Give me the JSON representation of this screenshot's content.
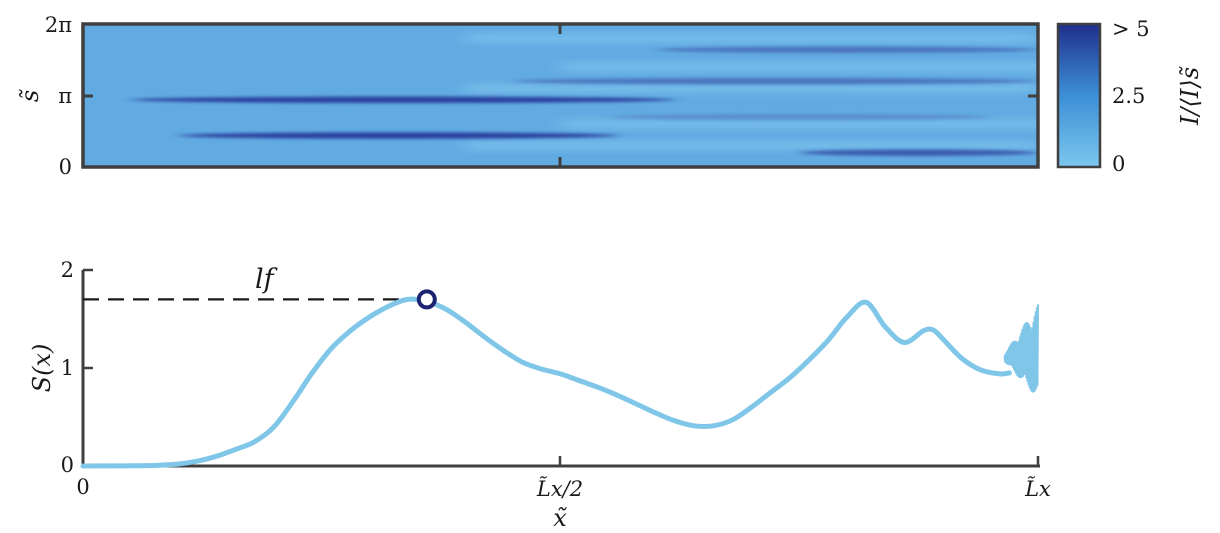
{
  "chart_data": [
    {
      "type": "heatmap",
      "xlabel": "",
      "ylabel": "s̃",
      "y_ticks": [
        "0",
        "π",
        "2π"
      ],
      "colorbar": {
        "label": "I/⟨I⟩s̃",
        "ticks": [
          "0",
          "2.5",
          "> 5"
        ],
        "range": [
          0,
          5
        ],
        "colors": [
          "#7cc6ee",
          "#2a3f9e"
        ]
      },
      "bands": [
        {
          "s": 0.47,
          "x_start": 0.05,
          "x_end": 0.62,
          "peak_intensity": 5
        },
        {
          "s": 0.22,
          "x_start": 0.1,
          "x_end": 0.56,
          "peak_intensity": 5
        },
        {
          "s": 0.6,
          "x_start": 0.45,
          "x_end": 1.0,
          "peak_intensity": 3
        },
        {
          "s": 0.82,
          "x_start": 0.6,
          "x_end": 1.0,
          "peak_intensity": 3
        },
        {
          "s": 0.1,
          "x_start": 0.75,
          "x_end": 1.0,
          "peak_intensity": 4
        },
        {
          "s": 0.35,
          "x_start": 0.55,
          "x_end": 0.95,
          "peak_intensity": 2
        }
      ]
    },
    {
      "type": "line",
      "xlabel": "x̃",
      "ylabel": "S(x)",
      "x_ticks": [
        "0",
        "L̃x/2",
        "L̃x"
      ],
      "y_ticks": [
        "0",
        "1",
        "2"
      ],
      "xlim": [
        0,
        1
      ],
      "ylim": [
        0,
        2
      ],
      "series": [
        {
          "color": "#7fc6e8",
          "x": [
            0,
            0.05,
            0.08,
            0.1,
            0.12,
            0.14,
            0.16,
            0.18,
            0.2,
            0.22,
            0.24,
            0.26,
            0.28,
            0.3,
            0.32,
            0.34,
            0.36,
            0.38,
            0.4,
            0.42,
            0.44,
            0.46,
            0.48,
            0.5,
            0.52,
            0.54,
            0.56,
            0.58,
            0.6,
            0.62,
            0.64,
            0.66,
            0.68,
            0.7,
            0.72,
            0.74,
            0.76,
            0.78,
            0.8,
            0.82,
            0.84,
            0.86,
            0.88,
            0.89,
            0.9,
            0.92,
            0.94,
            0.96,
            0.97
          ],
          "y": [
            0,
            0.002,
            0.008,
            0.02,
            0.05,
            0.1,
            0.17,
            0.25,
            0.4,
            0.66,
            0.95,
            1.2,
            1.38,
            1.52,
            1.63,
            1.7,
            1.68,
            1.6,
            1.47,
            1.32,
            1.18,
            1.06,
            0.99,
            0.94,
            0.87,
            0.8,
            0.72,
            0.63,
            0.54,
            0.46,
            0.41,
            0.41,
            0.47,
            0.6,
            0.75,
            0.9,
            1.08,
            1.28,
            1.52,
            1.67,
            1.42,
            1.26,
            1.38,
            1.39,
            1.3,
            1.1,
            0.98,
            0.94,
            0.95
          ]
        }
      ],
      "noisy_tail": {
        "x_start": 0.965,
        "x_end": 1.0,
        "center": 1.1,
        "amplitude_max": 0.5
      },
      "marker": {
        "x": 0.36,
        "y": 1.7
      },
      "reference_line": {
        "y": 1.7,
        "x_end": 0.36,
        "style": "dashed",
        "label": "lf"
      }
    }
  ]
}
